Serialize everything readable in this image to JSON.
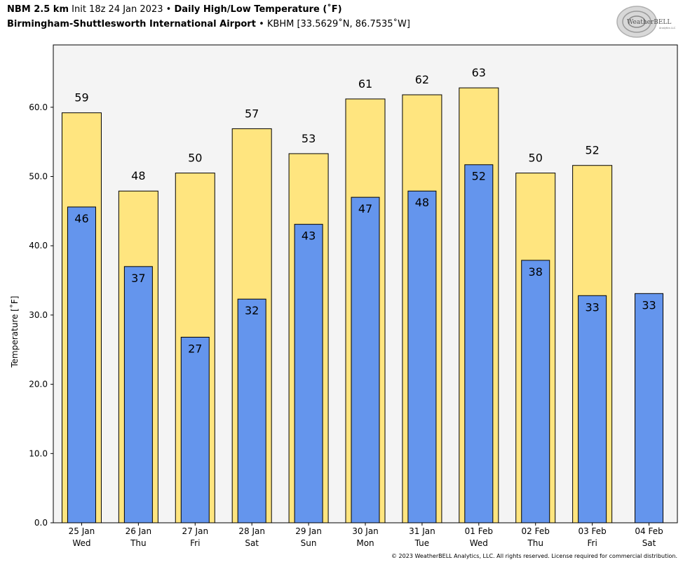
{
  "header": {
    "model": "NBM 2.5 km",
    "init": "Init 18z 24 Jan 2023",
    "sep": "•",
    "product": "Daily High/Low Temperature (˚F)",
    "station_name": "Birmingham-Shuttlesworth International Airport",
    "station_info": "KBHM [33.5629˚N, 86.7535˚W]"
  },
  "logo": {
    "text_main": "WeatherBELL",
    "text_sub": "Analytics LLC"
  },
  "footer": {
    "copyright": "© 2023 WeatherBELL Analytics, LLC. All rights reserved. License required for commercial distribution."
  },
  "colors": {
    "high": "#ffe57f",
    "low": "#6495ed",
    "plot_bg": "#f4f4f4",
    "outline": "#000000"
  },
  "chart_data": {
    "type": "bar",
    "ylabel": "Temperature [˚F]",
    "ylim": [
      0,
      69
    ],
    "yticks": [
      0,
      10,
      20,
      30,
      40,
      50,
      60
    ],
    "ytick_labels": [
      "0.0",
      "10.0",
      "20.0",
      "30.0",
      "40.0",
      "50.0",
      "60.0"
    ],
    "grid": false,
    "categories": [
      [
        "25 Jan",
        "Wed"
      ],
      [
        "26 Jan",
        "Thu"
      ],
      [
        "27 Jan",
        "Fri"
      ],
      [
        "28 Jan",
        "Sat"
      ],
      [
        "29 Jan",
        "Sun"
      ],
      [
        "30 Jan",
        "Mon"
      ],
      [
        "31 Jan",
        "Tue"
      ],
      [
        "01 Feb",
        "Wed"
      ],
      [
        "02 Feb",
        "Thu"
      ],
      [
        "03 Feb",
        "Fri"
      ],
      [
        "04 Feb",
        "Sat"
      ]
    ],
    "series": [
      {
        "key": "high",
        "values": [
          59.2,
          47.9,
          50.5,
          56.9,
          53.3,
          61.2,
          61.8,
          62.8,
          50.5,
          51.6,
          null
        ],
        "labels": [
          "59",
          "48",
          "50",
          "57",
          "53",
          "61",
          "62",
          "63",
          "50",
          "52",
          ""
        ]
      },
      {
        "key": "low",
        "values": [
          45.6,
          37.0,
          26.8,
          32.3,
          43.1,
          47.0,
          47.9,
          51.7,
          37.9,
          32.8,
          33.1
        ],
        "labels": [
          "46",
          "37",
          "27",
          "32",
          "43",
          "47",
          "48",
          "52",
          "38",
          "33",
          "33"
        ]
      }
    ]
  }
}
